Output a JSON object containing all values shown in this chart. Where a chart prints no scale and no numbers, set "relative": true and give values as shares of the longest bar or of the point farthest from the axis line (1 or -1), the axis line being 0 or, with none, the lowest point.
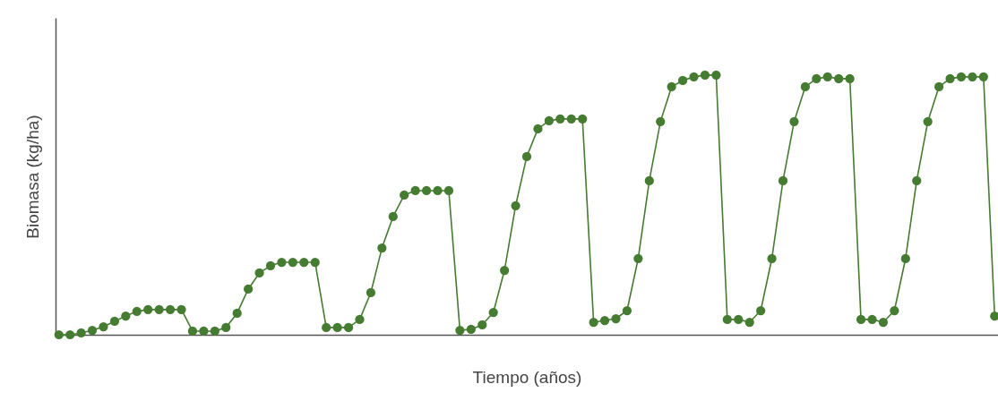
{
  "chart_data": {
    "type": "line",
    "relative": true,
    "xlabel": "Tiempo (años)",
    "ylabel": "Biomasa (kg/ha)",
    "marker": "circle",
    "tick_labels": false,
    "categories": [
      null,
      null,
      null,
      null,
      null,
      null,
      null,
      null,
      null,
      null,
      null,
      null,
      null,
      null,
      null,
      null,
      null,
      null,
      null,
      null,
      null,
      null,
      null,
      null,
      null,
      null,
      null,
      null,
      null,
      null,
      null,
      null,
      null,
      null,
      null,
      null,
      null,
      null,
      null,
      null,
      null,
      null,
      null,
      null,
      null,
      null,
      null,
      null,
      null,
      null,
      null,
      null,
      null,
      null,
      null,
      null,
      null,
      null,
      null,
      null,
      null,
      null,
      null,
      null,
      null,
      null,
      null,
      null,
      null,
      null,
      null,
      null,
      null,
      null,
      null,
      null,
      null,
      null,
      null,
      null,
      null,
      null,
      null,
      null,
      null
    ],
    "series": [
      {
        "color": "#467b32",
        "values": [
          0,
          0,
          0.007,
          0.017,
          0.031,
          0.052,
          0.072,
          0.09,
          0.097,
          0.097,
          0.097,
          0.097,
          0.014,
          0.014,
          0.014,
          0.028,
          0.083,
          0.176,
          0.238,
          0.266,
          0.279,
          0.279,
          0.279,
          0.279,
          0.028,
          0.028,
          0.028,
          0.059,
          0.162,
          0.334,
          0.455,
          0.538,
          0.555,
          0.555,
          0.555,
          0.555,
          0.017,
          0.021,
          0.038,
          0.086,
          0.248,
          0.497,
          0.686,
          0.793,
          0.824,
          0.831,
          0.831,
          0.831,
          0.048,
          0.055,
          0.062,
          0.093,
          0.293,
          0.593,
          0.821,
          0.955,
          0.979,
          0.993,
          1,
          1,
          0.059,
          0.059,
          0.048,
          0.093,
          0.293,
          0.593,
          0.821,
          0.955,
          0.986,
          0.993,
          0.986,
          0.986,
          0.059,
          0.059,
          0.048,
          0.093,
          0.293,
          0.593,
          0.821,
          0.955,
          0.986,
          0.993,
          0.993,
          0.993,
          0.072
        ]
      }
    ]
  }
}
